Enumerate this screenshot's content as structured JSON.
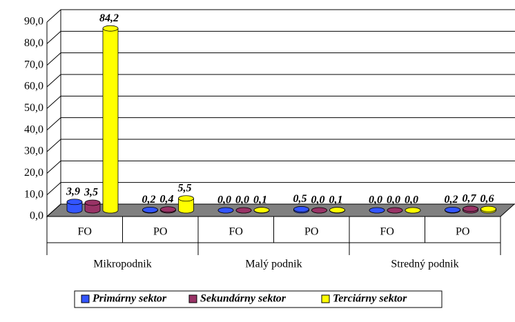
{
  "chart_data": {
    "type": "bar3d",
    "categories": [
      "FO",
      "PO",
      "FO",
      "PO",
      "FO",
      "PO"
    ],
    "groups": [
      "Mikropodnik",
      "Malý podnik",
      "Stredný podnik"
    ],
    "series": [
      {
        "name": "Primárny sektor",
        "color": "#3355ff",
        "values": [
          3.9,
          0.2,
          0.0,
          0.5,
          0.0,
          0.2
        ],
        "value_labels": [
          "3,9",
          "0,2",
          "0,0",
          "0,5",
          "0,0",
          "0,2"
        ]
      },
      {
        "name": "Sekundárny sektor",
        "color": "#993366",
        "values": [
          3.5,
          0.4,
          0.0,
          0.0,
          0.0,
          0.7
        ],
        "value_labels": [
          "3,5",
          "0,4",
          "0,0",
          "0,0",
          "0,0",
          "0,7"
        ]
      },
      {
        "name": "Terciárny sektor",
        "color": "#ffff00",
        "values": [
          84.2,
          5.5,
          0.1,
          0.1,
          0.0,
          0.6
        ],
        "value_labels": [
          "84,2",
          "5,5",
          "0,1",
          "0,1",
          "0,0",
          "0,6"
        ]
      }
    ],
    "ylim": [
      0,
      90
    ],
    "yticks": [
      {
        "value": 0,
        "label": "0,0"
      },
      {
        "value": 10,
        "label": "10,0"
      },
      {
        "value": 20,
        "label": "20,0"
      },
      {
        "value": 30,
        "label": "30,0"
      },
      {
        "value": 40,
        "label": "40,0"
      },
      {
        "value": 50,
        "label": "50,0"
      },
      {
        "value": 60,
        "label": "60,0"
      },
      {
        "value": 70,
        "label": "70,0"
      },
      {
        "value": 80,
        "label": "80,0"
      },
      {
        "value": 90,
        "label": "90,0"
      }
    ],
    "grid": true
  }
}
